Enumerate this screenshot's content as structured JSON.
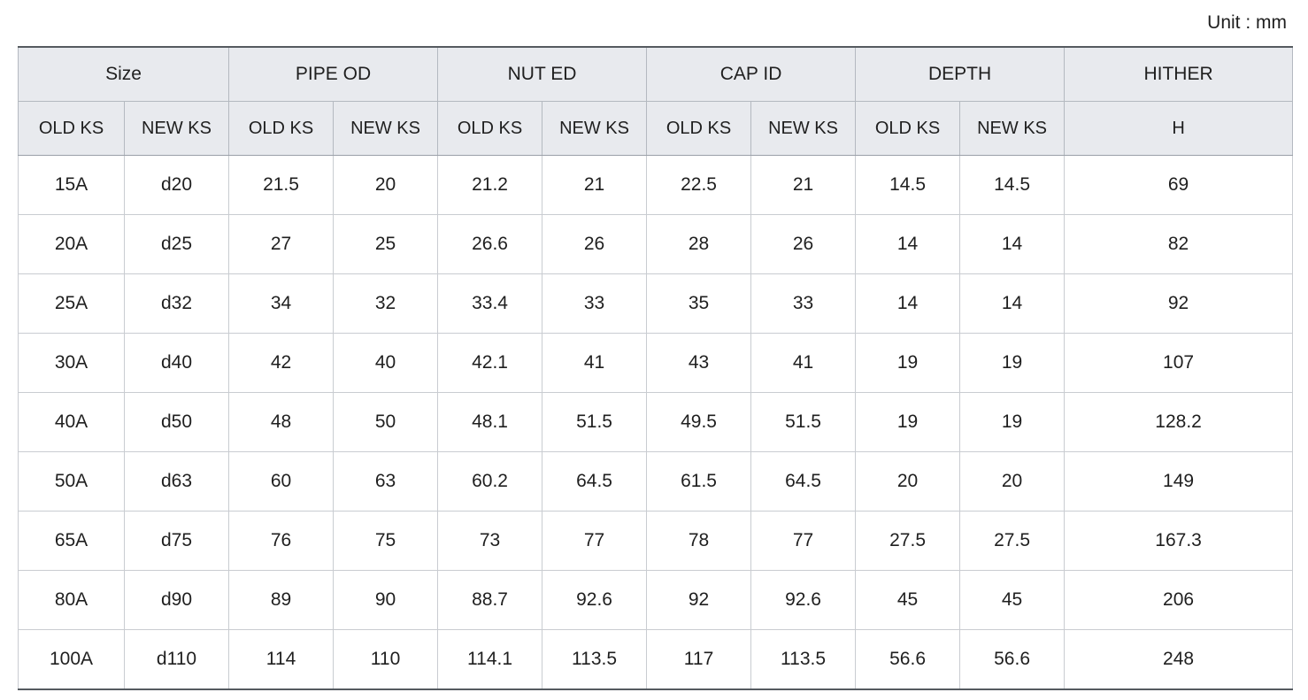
{
  "unit_label": "Unit : mm",
  "table": {
    "groups": [
      {
        "label": "Size",
        "span": 2
      },
      {
        "label": "PIPE OD",
        "span": 2
      },
      {
        "label": "NUT ED",
        "span": 2
      },
      {
        "label": "CAP ID",
        "span": 2
      },
      {
        "label": "DEPTH",
        "span": 2
      },
      {
        "label": "HITHER",
        "span": 1
      }
    ],
    "subheaders": [
      "OLD KS",
      "NEW KS",
      "OLD KS",
      "NEW KS",
      "OLD KS",
      "NEW KS",
      "OLD KS",
      "NEW KS",
      "OLD KS",
      "NEW KS",
      "H"
    ],
    "rows": [
      [
        "15A",
        "d20",
        "21.5",
        "20",
        "21.2",
        "21",
        "22.5",
        "21",
        "14.5",
        "14.5",
        "69"
      ],
      [
        "20A",
        "d25",
        "27",
        "25",
        "26.6",
        "26",
        "28",
        "26",
        "14",
        "14",
        "82"
      ],
      [
        "25A",
        "d32",
        "34",
        "32",
        "33.4",
        "33",
        "35",
        "33",
        "14",
        "14",
        "92"
      ],
      [
        "30A",
        "d40",
        "42",
        "40",
        "42.1",
        "41",
        "43",
        "41",
        "19",
        "19",
        "107"
      ],
      [
        "40A",
        "d50",
        "48",
        "50",
        "48.1",
        "51.5",
        "49.5",
        "51.5",
        "19",
        "19",
        "128.2"
      ],
      [
        "50A",
        "d63",
        "60",
        "63",
        "60.2",
        "64.5",
        "61.5",
        "64.5",
        "20",
        "20",
        "149"
      ],
      [
        "65A",
        "d75",
        "76",
        "75",
        "73",
        "77",
        "78",
        "77",
        "27.5",
        "27.5",
        "167.3"
      ],
      [
        "80A",
        "d90",
        "89",
        "90",
        "88.7",
        "92.6",
        "92",
        "92.6",
        "45",
        "45",
        "206"
      ],
      [
        "100A",
        "d110",
        "114",
        "110",
        "114.1",
        "113.5",
        "117",
        "113.5",
        "56.6",
        "56.6",
        "248"
      ]
    ]
  }
}
